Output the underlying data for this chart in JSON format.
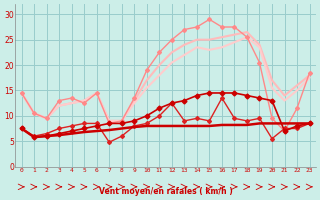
{
  "x": [
    0,
    1,
    2,
    3,
    4,
    5,
    6,
    7,
    8,
    9,
    10,
    11,
    12,
    13,
    14,
    15,
    16,
    17,
    18,
    19,
    20,
    21,
    22,
    23
  ],
  "background_color": "#cceee8",
  "grid_color": "#99cccc",
  "xlabel": "Vent moyen/en rafales ( km/h )",
  "xlabel_color": "#cc0000",
  "tick_color": "#cc0000",
  "ylim": [
    0,
    32
  ],
  "yticks": [
    0,
    5,
    10,
    15,
    20,
    25,
    30
  ],
  "lines": [
    {
      "y": [
        7.5,
        5.8,
        6.0,
        6.2,
        6.5,
        6.8,
        7.0,
        7.2,
        7.5,
        7.8,
        8.0,
        8.0,
        8.0,
        8.0,
        8.0,
        8.0,
        8.2,
        8.2,
        8.2,
        8.5,
        8.5,
        8.5,
        8.5,
        8.5
      ],
      "color": "#cc0000",
      "lw": 1.8,
      "marker": null,
      "zorder": 5
    },
    {
      "y": [
        7.5,
        5.8,
        6.0,
        6.5,
        7.0,
        7.5,
        8.0,
        8.5,
        8.5,
        9.0,
        10.0,
        11.5,
        12.5,
        13.0,
        14.0,
        14.5,
        14.5,
        14.5,
        14.0,
        13.5,
        13.0,
        7.0,
        8.0,
        8.5
      ],
      "color": "#cc0000",
      "lw": 1.2,
      "marker": "D",
      "markersize": 2.5,
      "zorder": 6
    },
    {
      "y": [
        7.5,
        6.0,
        6.5,
        7.5,
        8.0,
        8.5,
        8.5,
        4.8,
        6.0,
        8.0,
        8.5,
        10.0,
        12.5,
        9.0,
        9.5,
        9.0,
        13.5,
        9.5,
        9.0,
        9.5,
        5.5,
        7.5,
        7.5,
        8.5
      ],
      "color": "#dd2222",
      "lw": 1.0,
      "marker": "D",
      "markersize": 2.0,
      "zorder": 4
    },
    {
      "y": [
        14.5,
        10.5,
        9.5,
        13.0,
        13.5,
        12.5,
        14.5,
        8.5,
        9.0,
        13.5,
        19.0,
        22.5,
        25.0,
        27.0,
        27.5,
        29.0,
        27.5,
        27.5,
        25.5,
        20.5,
        9.5,
        7.0,
        11.5,
        18.5
      ],
      "color": "#ff8888",
      "lw": 1.0,
      "marker": "D",
      "markersize": 2.0,
      "zorder": 2
    },
    {
      "y": [
        14.5,
        10.5,
        9.5,
        12.0,
        12.5,
        13.0,
        14.5,
        9.0,
        9.0,
        13.0,
        17.0,
        20.0,
        22.5,
        24.0,
        25.0,
        25.0,
        25.5,
        26.0,
        26.5,
        24.0,
        17.0,
        14.0,
        16.0,
        18.0
      ],
      "color": "#ffbbbb",
      "lw": 1.5,
      "marker": null,
      "zorder": 1
    },
    {
      "y": [
        14.5,
        10.5,
        9.5,
        12.0,
        12.5,
        13.0,
        14.5,
        9.0,
        9.0,
        12.5,
        15.5,
        18.0,
        20.5,
        22.0,
        23.5,
        23.0,
        23.5,
        24.5,
        25.5,
        23.5,
        15.5,
        13.0,
        15.0,
        17.5
      ],
      "color": "#ffcccc",
      "lw": 1.5,
      "marker": null,
      "zorder": 1
    }
  ]
}
